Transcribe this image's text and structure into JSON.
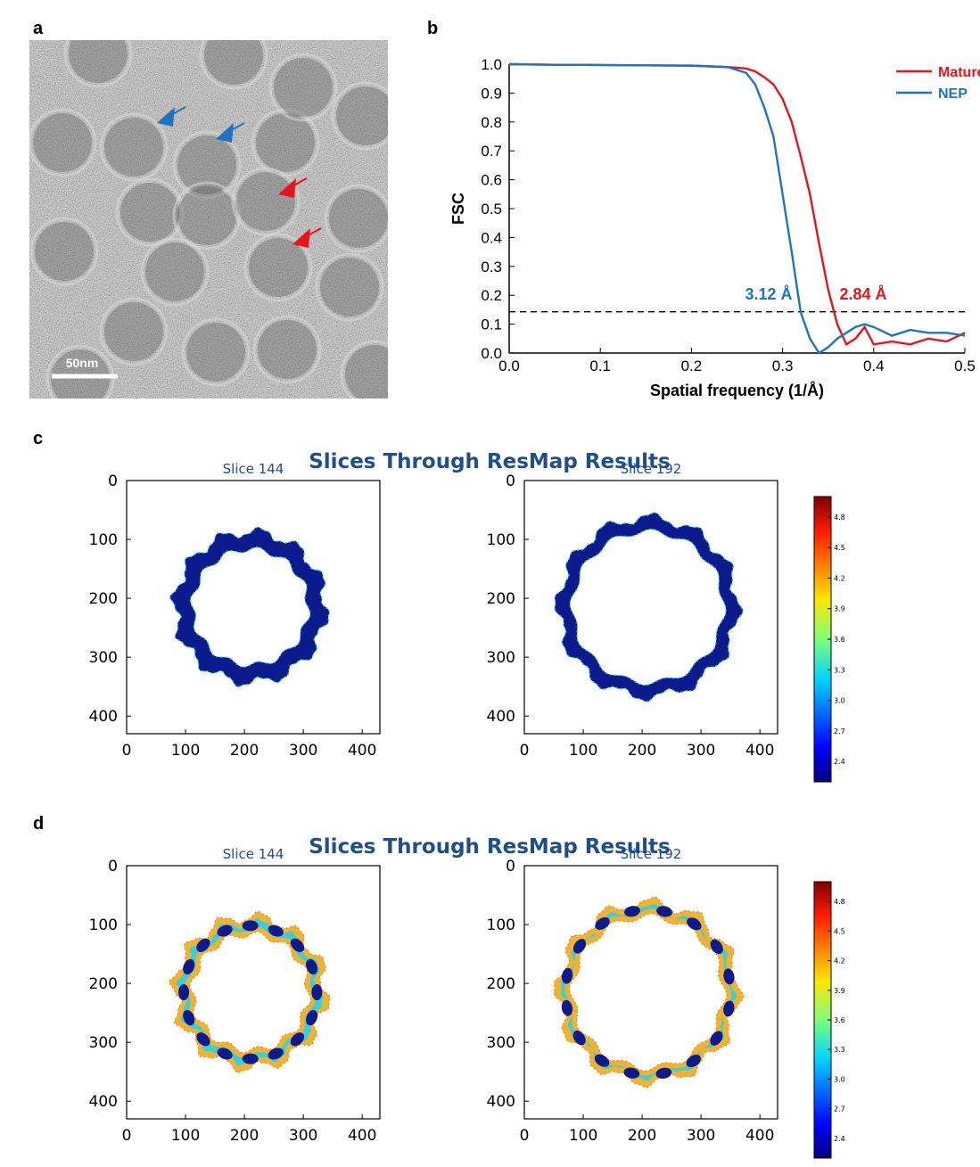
{
  "micrograph": {
    "label": "a",
    "scale_bar": "50nm"
  },
  "chart_data": [
    {
      "type": "line",
      "panel_label": "b",
      "xlabel": "Spatial frequency (1/Å)",
      "ylabel": "FSC",
      "xlim": [
        0,
        0.5
      ],
      "ylim": [
        0,
        1
      ],
      "xticks": [
        {
          "value": 0,
          "label": "0.0"
        },
        0.1,
        0.2,
        0.3,
        0.4,
        0.5
      ],
      "yticks": [
        {
          "value": 0,
          "label": "0.0"
        },
        0.1,
        0.2,
        0.3,
        0.4,
        0.5,
        0.6,
        0.7,
        0.8,
        0.9,
        {
          "value": 1,
          "label": "1.0"
        }
      ],
      "threshold": 0.143,
      "x": [
        0,
        0.05,
        0.1,
        0.15,
        0.2,
        0.24,
        0.26,
        0.27,
        0.28,
        0.29,
        0.3,
        0.31,
        0.32,
        0.33,
        0.34,
        0.35,
        0.36,
        0.37,
        0.38,
        0.39,
        0.4,
        0.42,
        0.44,
        0.46,
        0.48,
        0.5
      ],
      "series": [
        {
          "name": "Mature virion",
          "color": "#e8141b",
          "values": [
            1,
            0.998,
            0.997,
            0.996,
            0.995,
            0.99,
            0.985,
            0.975,
            0.955,
            0.93,
            0.88,
            0.8,
            0.68,
            0.55,
            0.38,
            0.22,
            0.1,
            0.03,
            0.05,
            0.09,
            0.03,
            0.04,
            0.03,
            0.05,
            0.04,
            0.07
          ]
        },
        {
          "name": "NEP",
          "color": "#1f74c0",
          "values": [
            1,
            0.998,
            0.997,
            0.996,
            0.995,
            0.99,
            0.97,
            0.93,
            0.85,
            0.75,
            0.55,
            0.35,
            0.14,
            0.05,
            0,
            0.02,
            0.05,
            0.07,
            0.09,
            0.1,
            0.09,
            0.06,
            0.08,
            0.07,
            0.07,
            0.06
          ]
        }
      ],
      "annotations": [
        {
          "text": "3.12 Å",
          "color": "#1f74c0"
        },
        {
          "text": "2.84 Å",
          "color": "#e8141b"
        }
      ]
    },
    {
      "type": "slices",
      "panel_label": "c",
      "title": "Slices Through ResMap Results",
      "panels": [
        {
          "title": "Slice 144"
        },
        {
          "title": "Slice 192"
        }
      ],
      "xlim": [
        0,
        430
      ],
      "ylim": [
        0,
        430
      ],
      "y_inverted": true,
      "xticks": [
        0,
        100,
        200,
        300,
        400
      ],
      "yticks": [
        0,
        100,
        200,
        300,
        400
      ],
      "colorbar": {
        "lim": [
          2.2,
          5.0
        ],
        "ticks": [
          2.4,
          2.7,
          {
            "value": 3,
            "label": "3.0"
          },
          3.3,
          3.6,
          3.9,
          4.2,
          4.5,
          4.8
        ]
      }
    },
    {
      "type": "slices",
      "panel_label": "d",
      "title": "Slices Through ResMap Results",
      "panels": [
        {
          "title": "Slice 144"
        },
        {
          "title": "Slice 192"
        }
      ],
      "xlim": [
        0,
        430
      ],
      "ylim": [
        0,
        430
      ],
      "y_inverted": true,
      "xticks": [
        0,
        100,
        200,
        300,
        400
      ],
      "yticks": [
        0,
        100,
        200,
        300,
        400
      ],
      "colorbar": {
        "lim": [
          2.2,
          5.0
        ],
        "ticks": [
          2.4,
          2.7,
          {
            "value": 3,
            "label": "3.0"
          },
          3.3,
          3.6,
          3.9,
          4.2,
          4.5,
          4.8
        ]
      }
    }
  ]
}
